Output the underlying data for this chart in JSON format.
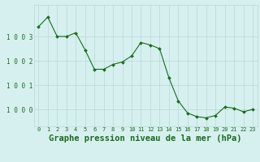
{
  "hours": [
    0,
    1,
    2,
    3,
    4,
    5,
    6,
    7,
    8,
    9,
    10,
    11,
    12,
    13,
    14,
    15,
    16,
    17,
    18,
    19,
    20,
    21,
    22,
    23
  ],
  "pressure": [
    1003.4,
    1003.8,
    1003.0,
    1003.0,
    1003.15,
    1002.45,
    1001.65,
    1001.65,
    1001.85,
    1001.95,
    1002.2,
    1002.75,
    1002.65,
    1002.5,
    1001.3,
    1000.35,
    999.85,
    999.7,
    999.65,
    999.75,
    1000.1,
    1000.05,
    999.9,
    1000.0
  ],
  "line_color": "#1a6b1a",
  "marker_color": "#1a6b1a",
  "bg_color": "#d6f0ef",
  "grid_color": "#b8d8d6",
  "label_color": "#1a6b1a",
  "title": "Graphe pression niveau de la mer (hPa)",
  "ytick_labels": [
    "1 0 0 0",
    "1 0 0 1",
    "1 0 0 2",
    "1 0 0 3"
  ],
  "ytick_vals": [
    1000,
    1001,
    1002,
    1003
  ],
  "ylim": [
    999.3,
    1004.3
  ],
  "xlim": [
    -0.5,
    23.5
  ],
  "xtick_fontsize": 5.0,
  "ytick_fontsize": 5.5,
  "title_fontsize": 7.5
}
